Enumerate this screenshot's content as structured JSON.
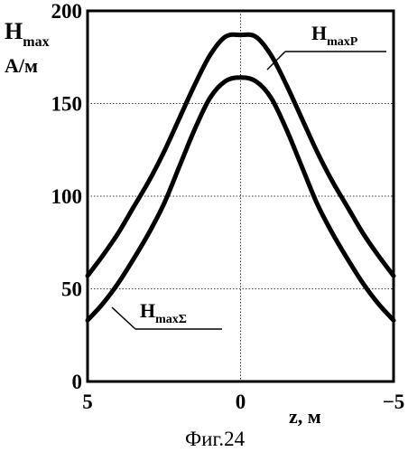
{
  "chart_data": {
    "type": "line",
    "xlabel": "z,  м",
    "ylabel_main": "H",
    "ylabel_sub": "max",
    "yunit": "А/м",
    "caption": "Фиг.24",
    "xlim": [
      5,
      -5
    ],
    "ylim": [
      0,
      200
    ],
    "x_ticks": [
      5,
      0,
      -5
    ],
    "x_tick_labels": [
      "5",
      "0",
      "−5"
    ],
    "y_ticks": [
      0,
      50,
      100,
      150,
      200
    ],
    "y_tick_labels": [
      "0",
      "50",
      "100",
      "150",
      "200"
    ],
    "grid": true,
    "series": [
      {
        "name": "H_maxP",
        "label_main": "H",
        "label_sub": "maxP",
        "x": [
          5,
          4.5,
          4,
          3.5,
          3,
          2.5,
          2,
          1.5,
          1,
          0.5,
          0,
          -0.5,
          -1,
          -1.5,
          -2,
          -2.5,
          -3,
          -3.5,
          -4,
          -4.5,
          -5
        ],
        "values": [
          57,
          68,
          80,
          94,
          108,
          124,
          142,
          160,
          176,
          186,
          187,
          186,
          176,
          160,
          142,
          124,
          108,
          94,
          80,
          68,
          57
        ]
      },
      {
        "name": "H_maxΣ",
        "label_main": "H",
        "label_sub": "maxΣ",
        "x": [
          5,
          4.5,
          4,
          3.5,
          3,
          2.5,
          2,
          1.5,
          1,
          0.5,
          0,
          -0.5,
          -1,
          -1.5,
          -2,
          -2.5,
          -3,
          -3.5,
          -4,
          -4.5,
          -5
        ],
        "values": [
          33,
          42,
          53,
          66,
          80,
          96,
          116,
          136,
          153,
          162,
          164,
          162,
          153,
          136,
          116,
          96,
          80,
          66,
          53,
          42,
          33
        ]
      }
    ]
  }
}
